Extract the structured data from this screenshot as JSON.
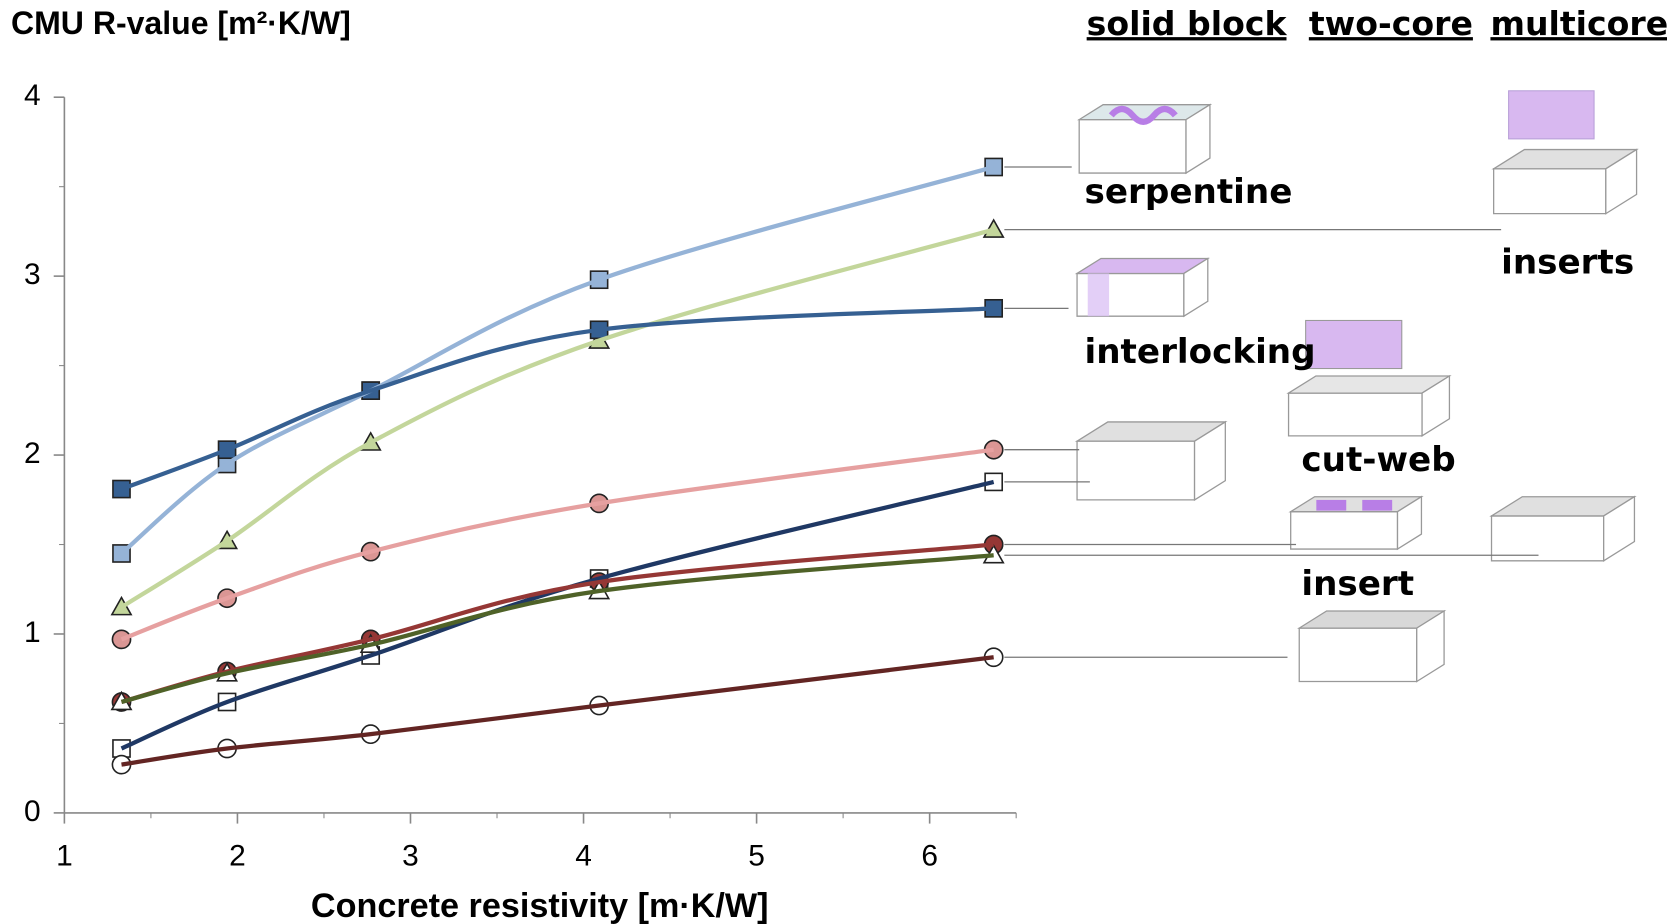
{
  "chart_data": {
    "type": "line",
    "title": "CMU R-value [m²·K/W]",
    "x_label": "Concrete resistivity [m·K/W]",
    "column_headers": [
      "solid block",
      "two-core",
      "multicore"
    ],
    "x": [
      1.33,
      1.94,
      2.77,
      4.09,
      6.37
    ],
    "xlim": [
      1,
      6.5
    ],
    "xticks": [
      1,
      2,
      3,
      4,
      5,
      6
    ],
    "ylim": [
      0,
      4
    ],
    "yticks": [
      0,
      1,
      2,
      3,
      4
    ],
    "series": [
      {
        "name": "serpentine",
        "color": "#95b3d7",
        "marker": "square",
        "marker_fill": "#95b3d7",
        "values": [
          1.45,
          1.95,
          2.36,
          2.98,
          3.61
        ]
      },
      {
        "name": "inserts",
        "color": "#c3d69b",
        "marker": "triangle",
        "marker_fill": "#c3d69b",
        "values": [
          1.15,
          1.52,
          2.07,
          2.64,
          3.26
        ]
      },
      {
        "name": "interlocking",
        "color": "#366092",
        "marker": "square",
        "marker_fill": "#366092",
        "values": [
          1.81,
          2.03,
          2.36,
          2.7,
          2.82
        ]
      },
      {
        "name": "cut-web",
        "color": "#e6a0a0",
        "marker": "circle",
        "marker_fill": "#da9694",
        "values": [
          0.97,
          1.2,
          1.46,
          1.73,
          2.03
        ]
      },
      {
        "color": "#1f3864",
        "marker": "square",
        "marker_fill": "#ffffff",
        "values": [
          0.36,
          0.62,
          0.88,
          1.31,
          1.85
        ]
      },
      {
        "name": "insert",
        "color": "#953735",
        "marker": "circle",
        "marker_fill": "#953735",
        "values": [
          0.62,
          0.79,
          0.97,
          1.29,
          1.5
        ]
      },
      {
        "color": "#4f6228",
        "marker": "triangle",
        "marker_fill": "#ffffff",
        "values": [
          0.62,
          0.78,
          0.94,
          1.24,
          1.44
        ]
      },
      {
        "color": "#632523",
        "marker": "circle",
        "marker_fill": "#ffffff",
        "values": [
          0.27,
          0.36,
          0.44,
          0.6,
          0.87
        ]
      }
    ]
  }
}
